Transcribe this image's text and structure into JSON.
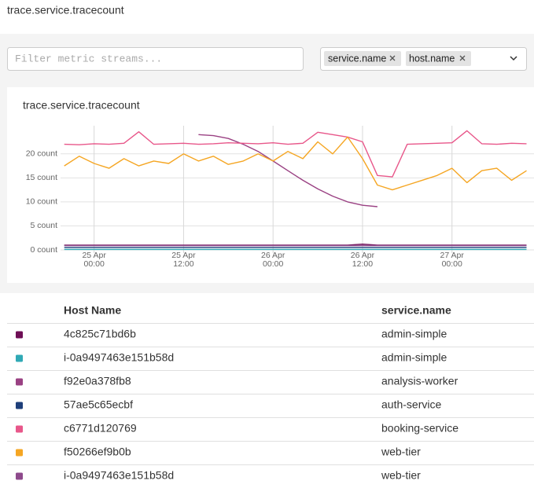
{
  "header": {
    "title": "trace.service.tracecount"
  },
  "filter": {
    "placeholder": "Filter metric streams...",
    "group_by": [
      "service.name",
      "host.name"
    ]
  },
  "chart_data": {
    "type": "line",
    "title": "trace.service.tracecount",
    "x": [
      "24 Apr 20:00",
      "24 Apr 22:00",
      "25 Apr 00:00",
      "25 Apr 02:00",
      "25 Apr 04:00",
      "25 Apr 06:00",
      "25 Apr 08:00",
      "25 Apr 10:00",
      "25 Apr 12:00",
      "25 Apr 14:00",
      "25 Apr 16:00",
      "25 Apr 18:00",
      "25 Apr 20:00",
      "25 Apr 22:00",
      "26 Apr 00:00",
      "26 Apr 02:00",
      "26 Apr 04:00",
      "26 Apr 06:00",
      "26 Apr 08:00",
      "26 Apr 10:00",
      "26 Apr 12:00",
      "26 Apr 14:00",
      "26 Apr 16:00",
      "26 Apr 18:00",
      "26 Apr 20:00",
      "26 Apr 22:00",
      "27 Apr 00:00",
      "27 Apr 02:00",
      "27 Apr 04:00",
      "27 Apr 06:00",
      "27 Apr 08:00",
      "27 Apr 10:00"
    ],
    "xlim": [
      "24 Apr 19:30",
      "27 Apr 11:00"
    ],
    "xticks": [
      "25 Apr 00:00",
      "25 Apr 12:00",
      "26 Apr 00:00",
      "26 Apr 12:00",
      "27 Apr 00:00"
    ],
    "ylim": [
      0,
      27
    ],
    "yticks": [
      {
        "value": 0,
        "label": "0 count"
      },
      {
        "value": 5,
        "label": "5 count"
      },
      {
        "value": 10,
        "label": "10 count"
      },
      {
        "value": 15,
        "label": "15 count"
      },
      {
        "value": 20,
        "label": "20 count"
      }
    ],
    "grid": true,
    "series": [
      {
        "name": "4c825c71bd6b",
        "service": "admin-simple",
        "color": "#6e0e55",
        "values": [
          1,
          1,
          1,
          1,
          1,
          1,
          1,
          1,
          1,
          1,
          1,
          1,
          1,
          1,
          1,
          1,
          1,
          1,
          1,
          1,
          1.2,
          1,
          1,
          1,
          1,
          1,
          1,
          1,
          1,
          1,
          1,
          1
        ]
      },
      {
        "name": "i-0a9497463e151b58d",
        "service": "admin-simple",
        "color": "#30a9b5",
        "values": [
          0.1,
          0.1,
          0.1,
          0.1,
          0.1,
          0.1,
          0.1,
          0.1,
          0.1,
          0.1,
          0.1,
          0.1,
          0.1,
          0.1,
          0.1,
          0.1,
          0.1,
          0.1,
          0.1,
          0.1,
          0.1,
          0.1,
          0.1,
          0.1,
          0.1,
          0.1,
          0.1,
          0.1,
          0.1,
          0.1,
          0.1,
          0.1
        ]
      },
      {
        "name": "f92e0a378fb8",
        "service": "analysis-worker",
        "color": "#9a4183",
        "values": [
          null,
          null,
          null,
          null,
          null,
          null,
          null,
          null,
          null,
          24,
          23.8,
          23.2,
          22,
          20.5,
          18.5,
          16.5,
          14.5,
          12.7,
          11.2,
          10,
          9.3,
          9,
          null,
          null,
          null,
          null,
          null,
          null,
          null,
          null,
          null,
          null
        ]
      },
      {
        "name": "57ae5c65ecbf",
        "service": "auth-service",
        "color": "#1e3f7a",
        "values": [
          0.5,
          0.5,
          0.5,
          0.5,
          0.5,
          0.5,
          0.5,
          0.5,
          0.5,
          0.5,
          0.5,
          0.5,
          0.5,
          0.5,
          0.5,
          0.5,
          0.5,
          0.5,
          0.5,
          0.5,
          0.5,
          0.5,
          0.5,
          0.5,
          0.5,
          0.5,
          0.5,
          0.5,
          0.5,
          0.5,
          0.5,
          0.5
        ]
      },
      {
        "name": "c6771d120769",
        "service": "booking-service",
        "color": "#e8578a",
        "values": [
          22,
          21.9,
          22.1,
          22,
          22.2,
          24.6,
          22,
          22.1,
          22.2,
          22,
          22.1,
          22.3,
          22.2,
          22.1,
          22.3,
          22,
          22.2,
          24.5,
          24,
          23.5,
          22.5,
          15.5,
          15.2,
          22,
          22.1,
          22.2,
          22.3,
          24.8,
          22.1,
          22,
          22.2,
          22.1
        ]
      },
      {
        "name": "f50266ef9b0b",
        "service": "web-tier",
        "color": "#f5a623",
        "values": [
          17.5,
          19.5,
          18,
          17,
          19,
          17.5,
          18.5,
          18,
          20,
          18.5,
          19.5,
          17.8,
          18.5,
          20,
          18.5,
          20.5,
          19,
          22.5,
          20,
          23.5,
          19,
          13.5,
          12.5,
          13.5,
          14.5,
          15.5,
          17,
          14,
          16.5,
          17,
          14.5,
          16.5
        ]
      },
      {
        "name": "i-0a9497463e151b58d",
        "service": "web-tier",
        "color": "#8e4a8c",
        "values": [
          0.9,
          0.9,
          0.9,
          0.9,
          0.9,
          0.9,
          0.9,
          0.9,
          0.9,
          0.9,
          0.9,
          0.9,
          0.9,
          0.9,
          0.9,
          0.9,
          0.9,
          0.9,
          0.9,
          0.9,
          0.9,
          0.9,
          0.9,
          0.9,
          0.9,
          0.9,
          0.9,
          0.9,
          0.9,
          0.9,
          0.9,
          0.9
        ]
      }
    ]
  },
  "table": {
    "columns": [
      "Host Name",
      "service.name"
    ]
  }
}
